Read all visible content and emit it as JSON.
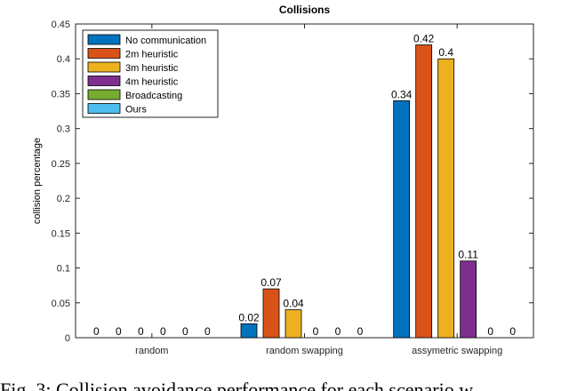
{
  "chart_data": {
    "type": "bar",
    "title": "Collisions",
    "xlabel": "",
    "ylabel": "collision percentage",
    "ylim": [
      0,
      0.45
    ],
    "yticks": [
      0,
      0.05,
      0.1,
      0.15,
      0.2,
      0.25,
      0.3,
      0.35,
      0.4,
      0.45
    ],
    "ytick_labels": [
      "0",
      "0.05",
      "0.1",
      "0.15",
      "0.2",
      "0.25",
      "0.3",
      "0.35",
      "0.4",
      "0.45"
    ],
    "categories": [
      "random",
      "random swapping",
      "assymetric swapping"
    ],
    "series": [
      {
        "name": "No communication",
        "color": "#0072BD",
        "values": [
          0,
          0.02,
          0.34
        ],
        "labels": [
          "0",
          "0.02",
          "0.34"
        ]
      },
      {
        "name": "2m heuristic",
        "color": "#D95319",
        "values": [
          0,
          0.07,
          0.42
        ],
        "labels": [
          "0",
          "0.07",
          "0.42"
        ]
      },
      {
        "name": "3m heuristic",
        "color": "#EDB120",
        "values": [
          0,
          0.04,
          0.4
        ],
        "labels": [
          "0",
          "0.04",
          "0.4"
        ]
      },
      {
        "name": "4m heuristic",
        "color": "#7E2F8E",
        "values": [
          0,
          0,
          0.11
        ],
        "labels": [
          "0",
          "0",
          "0.11"
        ]
      },
      {
        "name": "Broadcasting",
        "color": "#77AC30",
        "values": [
          0,
          0,
          0
        ],
        "labels": [
          "0",
          "0",
          "0"
        ]
      },
      {
        "name": "Ours",
        "color": "#4DBEEE",
        "values": [
          0,
          0,
          0
        ],
        "labels": [
          "0",
          "0",
          "0"
        ]
      }
    ],
    "grid": false,
    "legend_position": "top-left"
  },
  "caption": "Fig. 3: Collision avoidance performance for each scenario w"
}
